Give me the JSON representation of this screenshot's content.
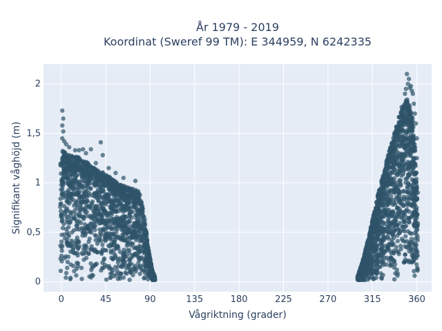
{
  "chart_data": {
    "type": "scatter",
    "title_line1": "År 1979 - 2019",
    "title_line2": "Koordinat (Sweref 99 TM): E 344959, N 6242335",
    "xlabel": "Vågriktning (grader)",
    "ylabel": "Signifikant våghöjd (m)",
    "xlim": [
      -18,
      375
    ],
    "ylim": [
      -0.1,
      2.2
    ],
    "x_ticks": [
      0,
      45,
      90,
      135,
      180,
      225,
      270,
      315,
      360
    ],
    "x_tick_labels": [
      "0",
      "45",
      "90",
      "135",
      "180",
      "225",
      "270",
      "315",
      "360"
    ],
    "y_ticks": [
      0,
      0.5,
      1,
      1.5,
      2
    ],
    "y_tick_labels": [
      "0",
      "0,5",
      "1",
      "1,5",
      "2"
    ],
    "grid": true,
    "marker_color": "#2f5469",
    "background_color": "#e5ecf6",
    "clusters": [
      {
        "x_range": [
          -1,
          95
        ],
        "upper_envelope": [
          [
            -1,
            1.2
          ],
          [
            0,
            1.35
          ],
          [
            5,
            1.3
          ],
          [
            10,
            1.28
          ],
          [
            20,
            1.25
          ],
          [
            30,
            1.18
          ],
          [
            40,
            1.12
          ],
          [
            50,
            1.05
          ],
          [
            60,
            0.98
          ],
          [
            70,
            0.95
          ],
          [
            78,
            0.92
          ],
          [
            80,
            0.88
          ],
          [
            85,
            0.6
          ],
          [
            88,
            0.35
          ],
          [
            92,
            0.12
          ],
          [
            95,
            0.05
          ]
        ]
      },
      {
        "x_range": [
          300,
          361
        ],
        "upper_envelope": [
          [
            300,
            0.05
          ],
          [
            305,
            0.2
          ],
          [
            310,
            0.4
          ],
          [
            315,
            0.62
          ],
          [
            320,
            0.85
          ],
          [
            325,
            1.05
          ],
          [
            330,
            1.25
          ],
          [
            335,
            1.42
          ],
          [
            340,
            1.6
          ],
          [
            345,
            1.78
          ],
          [
            350,
            1.85
          ],
          [
            355,
            1.72
          ],
          [
            358,
            1.4
          ],
          [
            360,
            1.0
          ],
          [
            361,
            0.6
          ]
        ]
      }
    ],
    "outliers": [
      {
        "x": 1,
        "y": 1.73
      },
      {
        "x": 2,
        "y": 1.65
      },
      {
        "x": 1,
        "y": 1.58
      },
      {
        "x": 2,
        "y": 1.52
      },
      {
        "x": 1,
        "y": 1.45
      },
      {
        "x": 3,
        "y": 1.42
      },
      {
        "x": 40,
        "y": 1.41
      },
      {
        "x": 30,
        "y": 1.34
      },
      {
        "x": 22,
        "y": 1.34
      },
      {
        "x": 14,
        "y": 1.33
      },
      {
        "x": 42,
        "y": 1.28
      },
      {
        "x": 18,
        "y": 1.33
      },
      {
        "x": 5,
        "y": 1.39
      },
      {
        "x": 8,
        "y": 1.36
      },
      {
        "x": 25,
        "y": 1.3
      },
      {
        "x": 48,
        "y": 1.15
      },
      {
        "x": 55,
        "y": 1.1
      },
      {
        "x": 63,
        "y": 1.05
      },
      {
        "x": 75,
        "y": 1.02
      },
      {
        "x": 35,
        "y": 1.2
      },
      {
        "x": 350,
        "y": 2.1
      },
      {
        "x": 352,
        "y": 2.05
      },
      {
        "x": 351,
        "y": 2.0
      },
      {
        "x": 354,
        "y": 1.98
      },
      {
        "x": 349,
        "y": 1.95
      },
      {
        "x": 355,
        "y": 1.93
      },
      {
        "x": 356,
        "y": 1.9
      },
      {
        "x": 357,
        "y": 1.8
      },
      {
        "x": 358,
        "y": 1.7
      },
      {
        "x": 359,
        "y": 1.6
      },
      {
        "x": 360,
        "y": 1.45
      },
      {
        "x": 358,
        "y": 1.35
      },
      {
        "x": 360,
        "y": 1.25
      },
      {
        "x": 361,
        "y": 0.9
      },
      {
        "x": 353,
        "y": 1.96
      },
      {
        "x": 348,
        "y": 1.9
      }
    ]
  }
}
